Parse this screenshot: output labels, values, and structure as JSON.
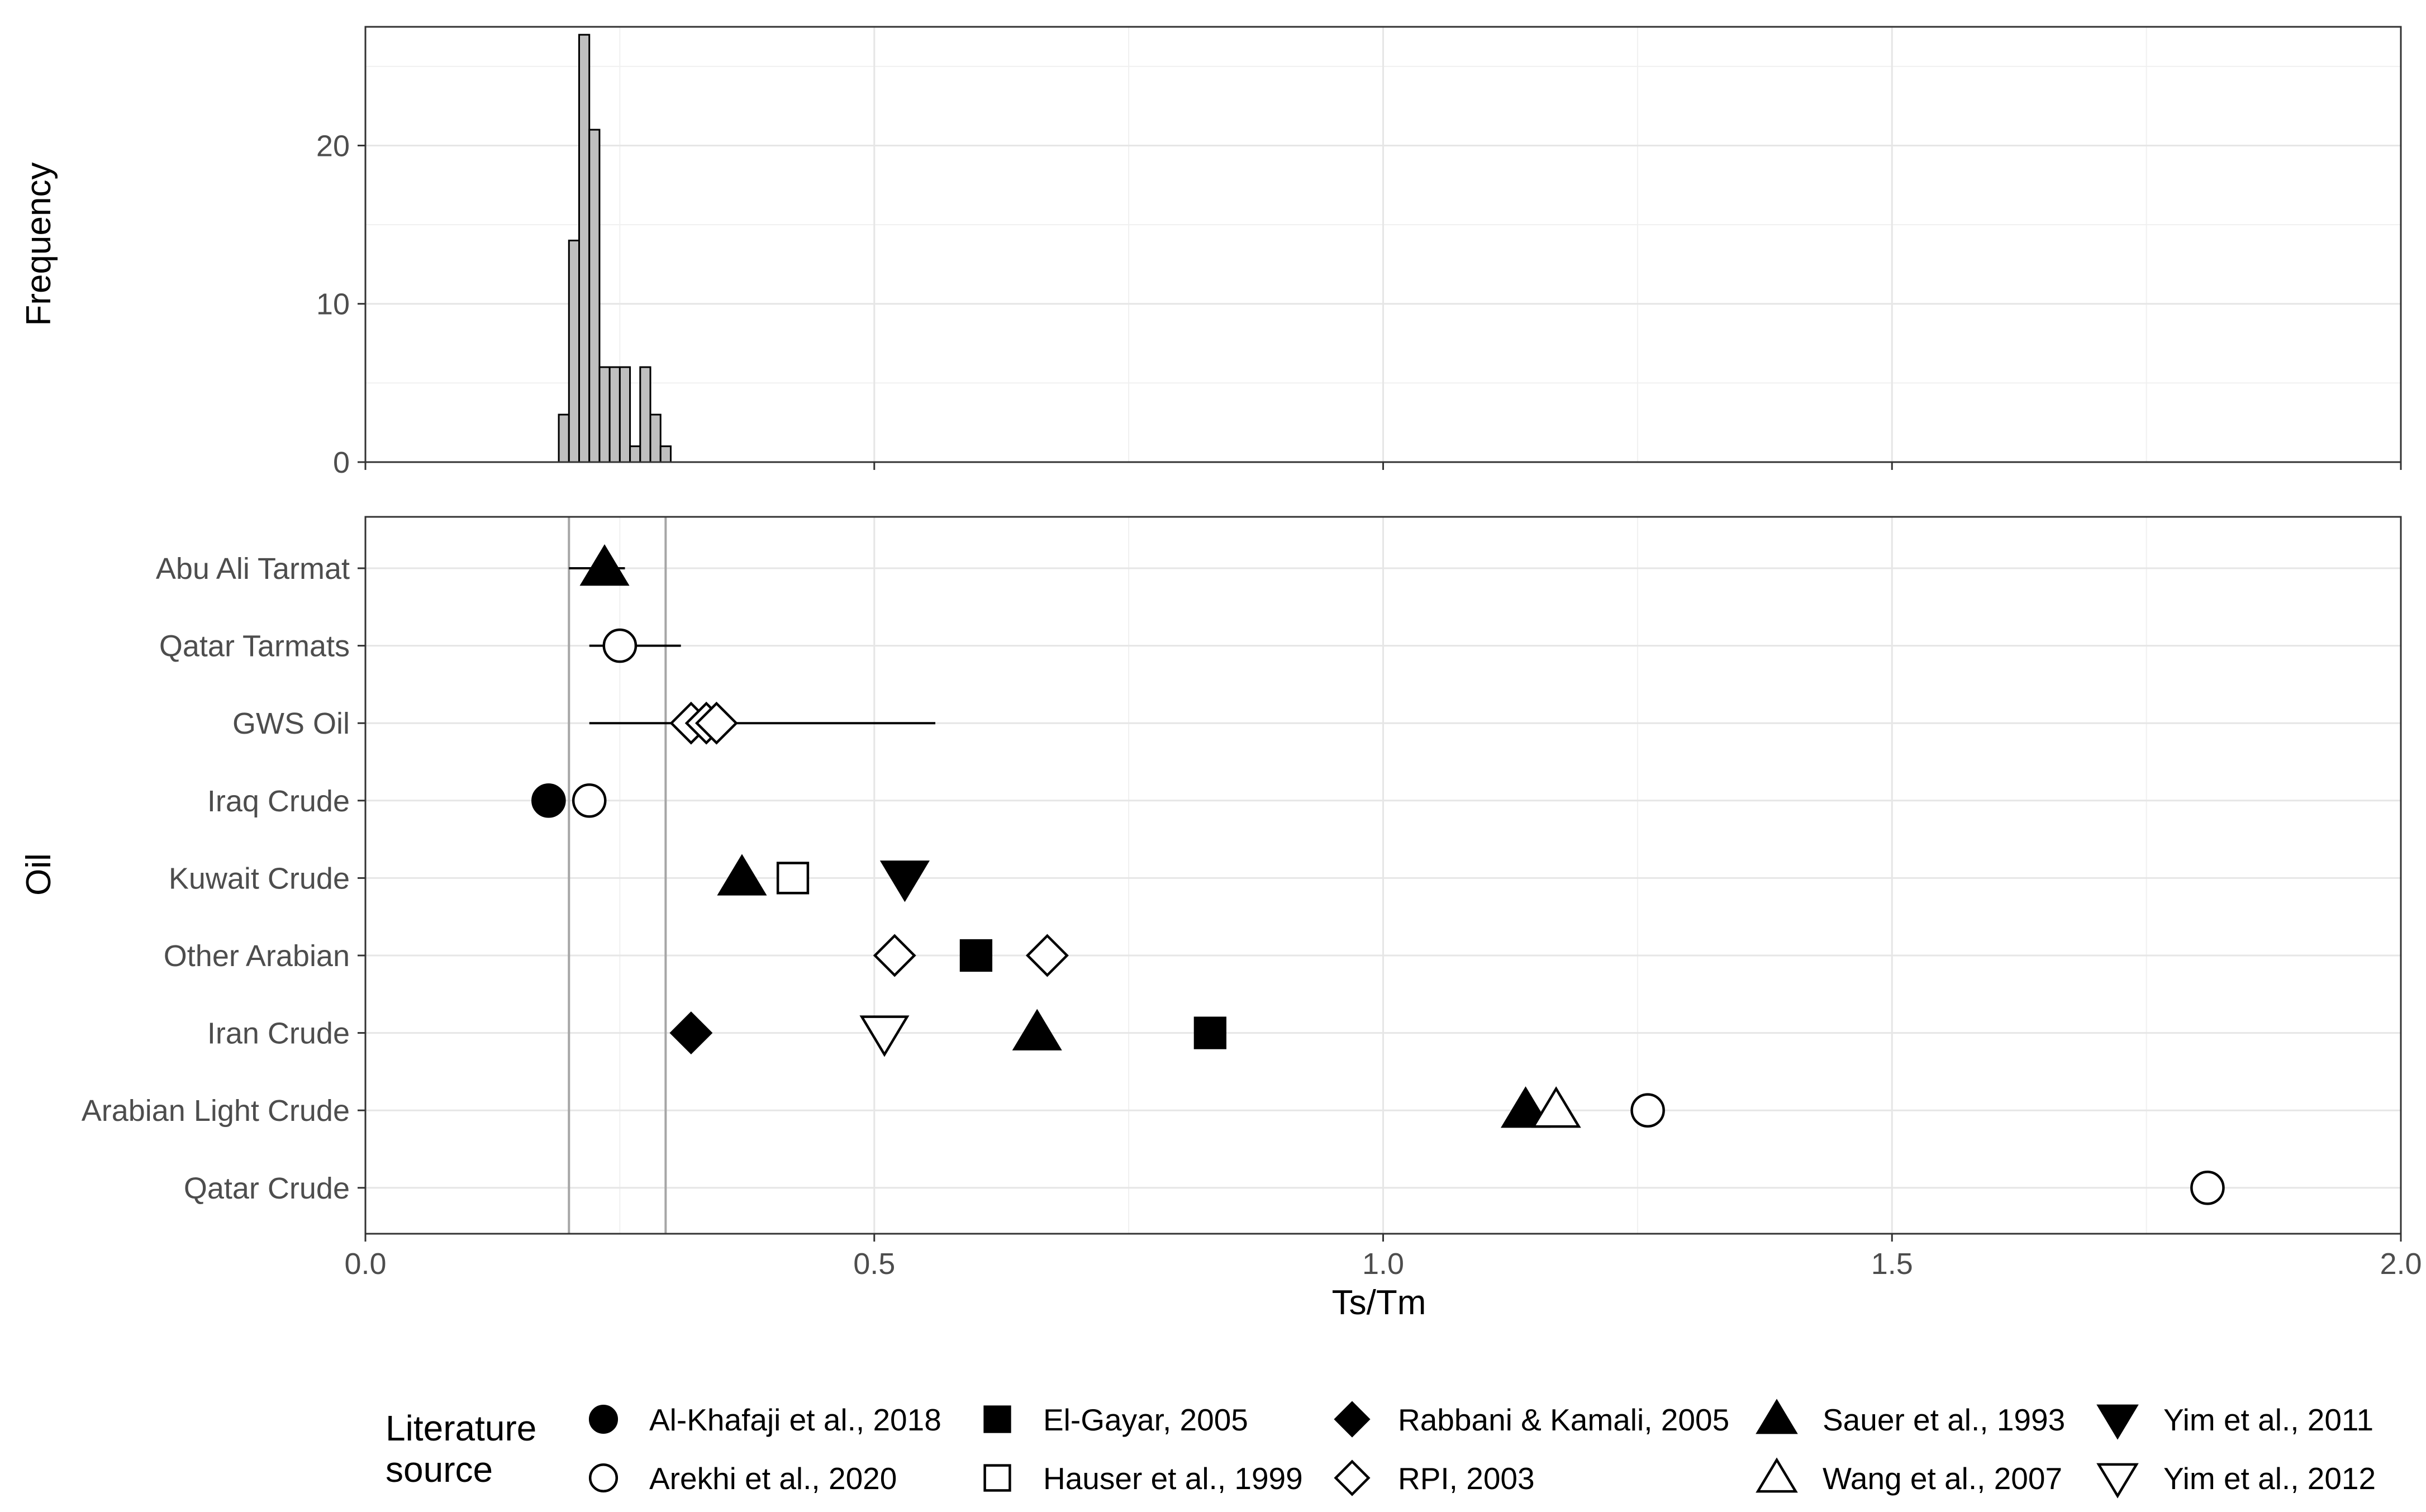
{
  "chart_data": [
    {
      "type": "histogram",
      "title": "",
      "xlabel": "",
      "ylabel": "Frequency",
      "xlim": [
        0,
        2
      ],
      "ylim": [
        0,
        27.5
      ],
      "y_ticks": [
        "0",
        "10",
        "20"
      ],
      "y_tick_values": [
        0,
        10,
        20
      ],
      "bin_width": 0.01,
      "bins": [
        {
          "start": 0.19,
          "count": 3
        },
        {
          "start": 0.2,
          "count": 14
        },
        {
          "start": 0.21,
          "count": 27
        },
        {
          "start": 0.22,
          "count": 21
        },
        {
          "start": 0.23,
          "count": 6
        },
        {
          "start": 0.24,
          "count": 6
        },
        {
          "start": 0.25,
          "count": 6
        },
        {
          "start": 0.26,
          "count": 1
        },
        {
          "start": 0.27,
          "count": 6
        },
        {
          "start": 0.28,
          "count": 3
        },
        {
          "start": 0.29,
          "count": 1
        }
      ]
    },
    {
      "type": "scatter",
      "title": "",
      "xlabel": "Ts/Tm",
      "ylabel": "Oil",
      "xlim": [
        0,
        2
      ],
      "x_ticks": [
        "0.0",
        "0.5",
        "1.0",
        "1.5",
        "2.0"
      ],
      "x_tick_values": [
        0,
        0.5,
        1.0,
        1.5,
        2.0
      ],
      "reference_lines": [
        0.2,
        0.295
      ],
      "categories": [
        "Abu Ali Tarmat",
        "Qatar Tarmats",
        "GWS Oil",
        "Iraq Crude",
        "Kuwait Crude",
        "Other Arabian",
        "Iran Crude",
        "Arabian Light Crude",
        "Qatar Crude"
      ],
      "ranges": [
        {
          "oil": "Abu Ali Tarmat",
          "min": 0.2,
          "max": 0.255
        },
        {
          "oil": "Qatar Tarmats",
          "min": 0.22,
          "max": 0.31
        },
        {
          "oil": "GWS Oil",
          "min": 0.22,
          "max": 0.56
        }
      ],
      "points": [
        {
          "oil": "Abu Ali Tarmat",
          "x": 0.235,
          "source": "Sauer et al., 1993"
        },
        {
          "oil": "Qatar Tarmats",
          "x": 0.25,
          "source": "Arekhi et al., 2020"
        },
        {
          "oil": "GWS Oil",
          "x": 0.32,
          "source": "RPI, 2003"
        },
        {
          "oil": "GWS Oil",
          "x": 0.335,
          "source": "RPI, 2003"
        },
        {
          "oil": "GWS Oil",
          "x": 0.345,
          "source": "RPI, 2003"
        },
        {
          "oil": "Iraq Crude",
          "x": 0.18,
          "source": "Al-Khafaji et al., 2018"
        },
        {
          "oil": "Iraq Crude",
          "x": 0.22,
          "source": "Arekhi et al., 2020"
        },
        {
          "oil": "Kuwait Crude",
          "x": 0.37,
          "source": "Sauer et al., 1993"
        },
        {
          "oil": "Kuwait Crude",
          "x": 0.42,
          "source": "Hauser et al., 1999"
        },
        {
          "oil": "Kuwait Crude",
          "x": 0.53,
          "source": "Yim et al., 2011"
        },
        {
          "oil": "Other Arabian",
          "x": 0.52,
          "source": "RPI, 2003"
        },
        {
          "oil": "Other Arabian",
          "x": 0.6,
          "source": "El-Gayar, 2005"
        },
        {
          "oil": "Other Arabian",
          "x": 0.67,
          "source": "RPI, 2003"
        },
        {
          "oil": "Iran Crude",
          "x": 0.32,
          "source": "Rabbani & Kamali, 2005"
        },
        {
          "oil": "Iran Crude",
          "x": 0.51,
          "source": "Yim et al., 2012"
        },
        {
          "oil": "Iran Crude",
          "x": 0.66,
          "source": "Sauer et al., 1993"
        },
        {
          "oil": "Iran Crude",
          "x": 0.83,
          "source": "El-Gayar, 2005"
        },
        {
          "oil": "Arabian Light Crude",
          "x": 1.14,
          "source": "Sauer et al., 1993"
        },
        {
          "oil": "Arabian Light Crude",
          "x": 1.17,
          "source": "Wang et al., 2007"
        },
        {
          "oil": "Arabian Light Crude",
          "x": 1.26,
          "source": "Arekhi et al., 2020"
        },
        {
          "oil": "Qatar Crude",
          "x": 1.81,
          "source": "Arekhi et al., 2020"
        }
      ],
      "legend": {
        "title_line1": "Literature",
        "title_line2": "source",
        "placement": "bottom",
        "entries": [
          {
            "label": "Al-Khafaji et al., 2018",
            "shape": "circle",
            "filled": true
          },
          {
            "label": "El-Gayar, 2005",
            "shape": "square",
            "filled": true
          },
          {
            "label": "Rabbani & Kamali, 2005",
            "shape": "diamond",
            "filled": true
          },
          {
            "label": "Sauer et al., 1993",
            "shape": "triangle-up",
            "filled": true
          },
          {
            "label": "Yim et al., 2011",
            "shape": "triangle-down",
            "filled": true
          },
          {
            "label": "Arekhi et al., 2020",
            "shape": "circle",
            "filled": false
          },
          {
            "label": "Hauser et al., 1999",
            "shape": "square",
            "filled": false
          },
          {
            "label": "RPI, 2003",
            "shape": "diamond",
            "filled": false
          },
          {
            "label": "Wang et al., 2007",
            "shape": "triangle-up",
            "filled": false
          },
          {
            "label": "Yim et al., 2012",
            "shape": "triangle-down",
            "filled": false
          }
        ]
      }
    }
  ]
}
